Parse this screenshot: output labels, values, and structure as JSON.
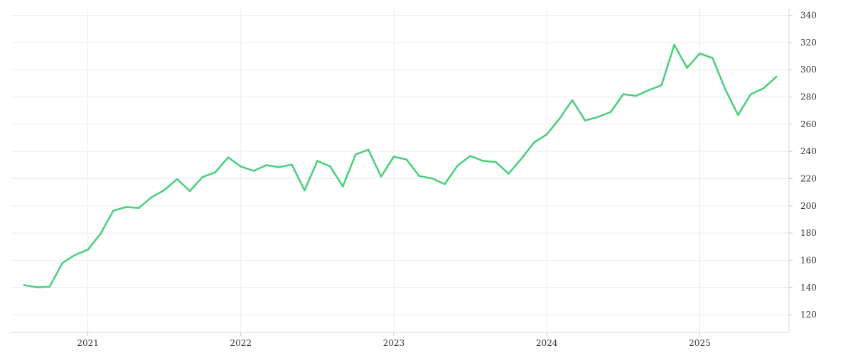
{
  "chart_data": {
    "type": "line",
    "title": "",
    "xlabel": "",
    "ylabel": "",
    "x_ticks": [
      "2021",
      "2022",
      "2023",
      "2024",
      "2025"
    ],
    "y_ticks": [
      120,
      140,
      160,
      180,
      200,
      220,
      240,
      260,
      280,
      300,
      320,
      340
    ],
    "ylim": [
      107,
      345
    ],
    "xlim": [
      "2020-07-01",
      "2025-08-01"
    ],
    "y_axis_side": "right",
    "grid": true,
    "line_color": "#4cd07d",
    "series": [
      {
        "x": [
          "2020-08",
          "2020-09",
          "2020-10",
          "2020-11",
          "2020-12",
          "2021-01",
          "2021-02",
          "2021-03",
          "2021-04",
          "2021-05",
          "2021-06",
          "2021-07",
          "2021-08",
          "2021-09",
          "2021-10",
          "2021-11",
          "2021-12",
          "2022-01",
          "2022-02",
          "2022-03",
          "2022-04",
          "2022-05",
          "2022-06",
          "2022-07",
          "2022-08",
          "2022-09",
          "2022-10",
          "2022-11",
          "2022-12",
          "2023-01",
          "2023-02",
          "2023-03",
          "2023-04",
          "2023-05",
          "2023-06",
          "2023-07",
          "2023-08",
          "2023-09",
          "2023-10",
          "2023-11",
          "2023-12",
          "2024-01",
          "2024-02",
          "2024-03",
          "2024-04",
          "2024-05",
          "2024-06",
          "2024-07",
          "2024-08",
          "2024-09",
          "2024-10",
          "2024-11",
          "2024-12",
          "2025-01",
          "2025-02",
          "2025-03",
          "2025-04",
          "2025-05",
          "2025-06",
          "2025-07"
        ],
        "values": [
          141.7,
          140.2,
          140.6,
          158.0,
          164.0,
          167.8,
          179.6,
          196.5,
          199.1,
          198.5,
          206.4,
          211.6,
          219.7,
          210.9,
          221.2,
          224.7,
          235.6,
          228.9,
          225.7,
          229.9,
          228.4,
          230.3,
          211.4,
          233.0,
          229.1,
          214.3,
          237.7,
          241.3,
          221.5,
          236.2,
          234.0,
          221.9,
          220.2,
          216.0,
          229.6,
          236.7,
          233.0,
          232.2,
          223.6,
          234.6,
          246.6,
          252.5,
          264.1,
          277.7,
          262.7,
          265.3,
          268.9,
          282.0,
          280.9,
          285.0,
          288.7,
          318.3,
          301.4,
          312.0,
          308.6,
          285.6,
          266.8,
          282.0,
          286.4,
          294.8
        ]
      }
    ]
  }
}
